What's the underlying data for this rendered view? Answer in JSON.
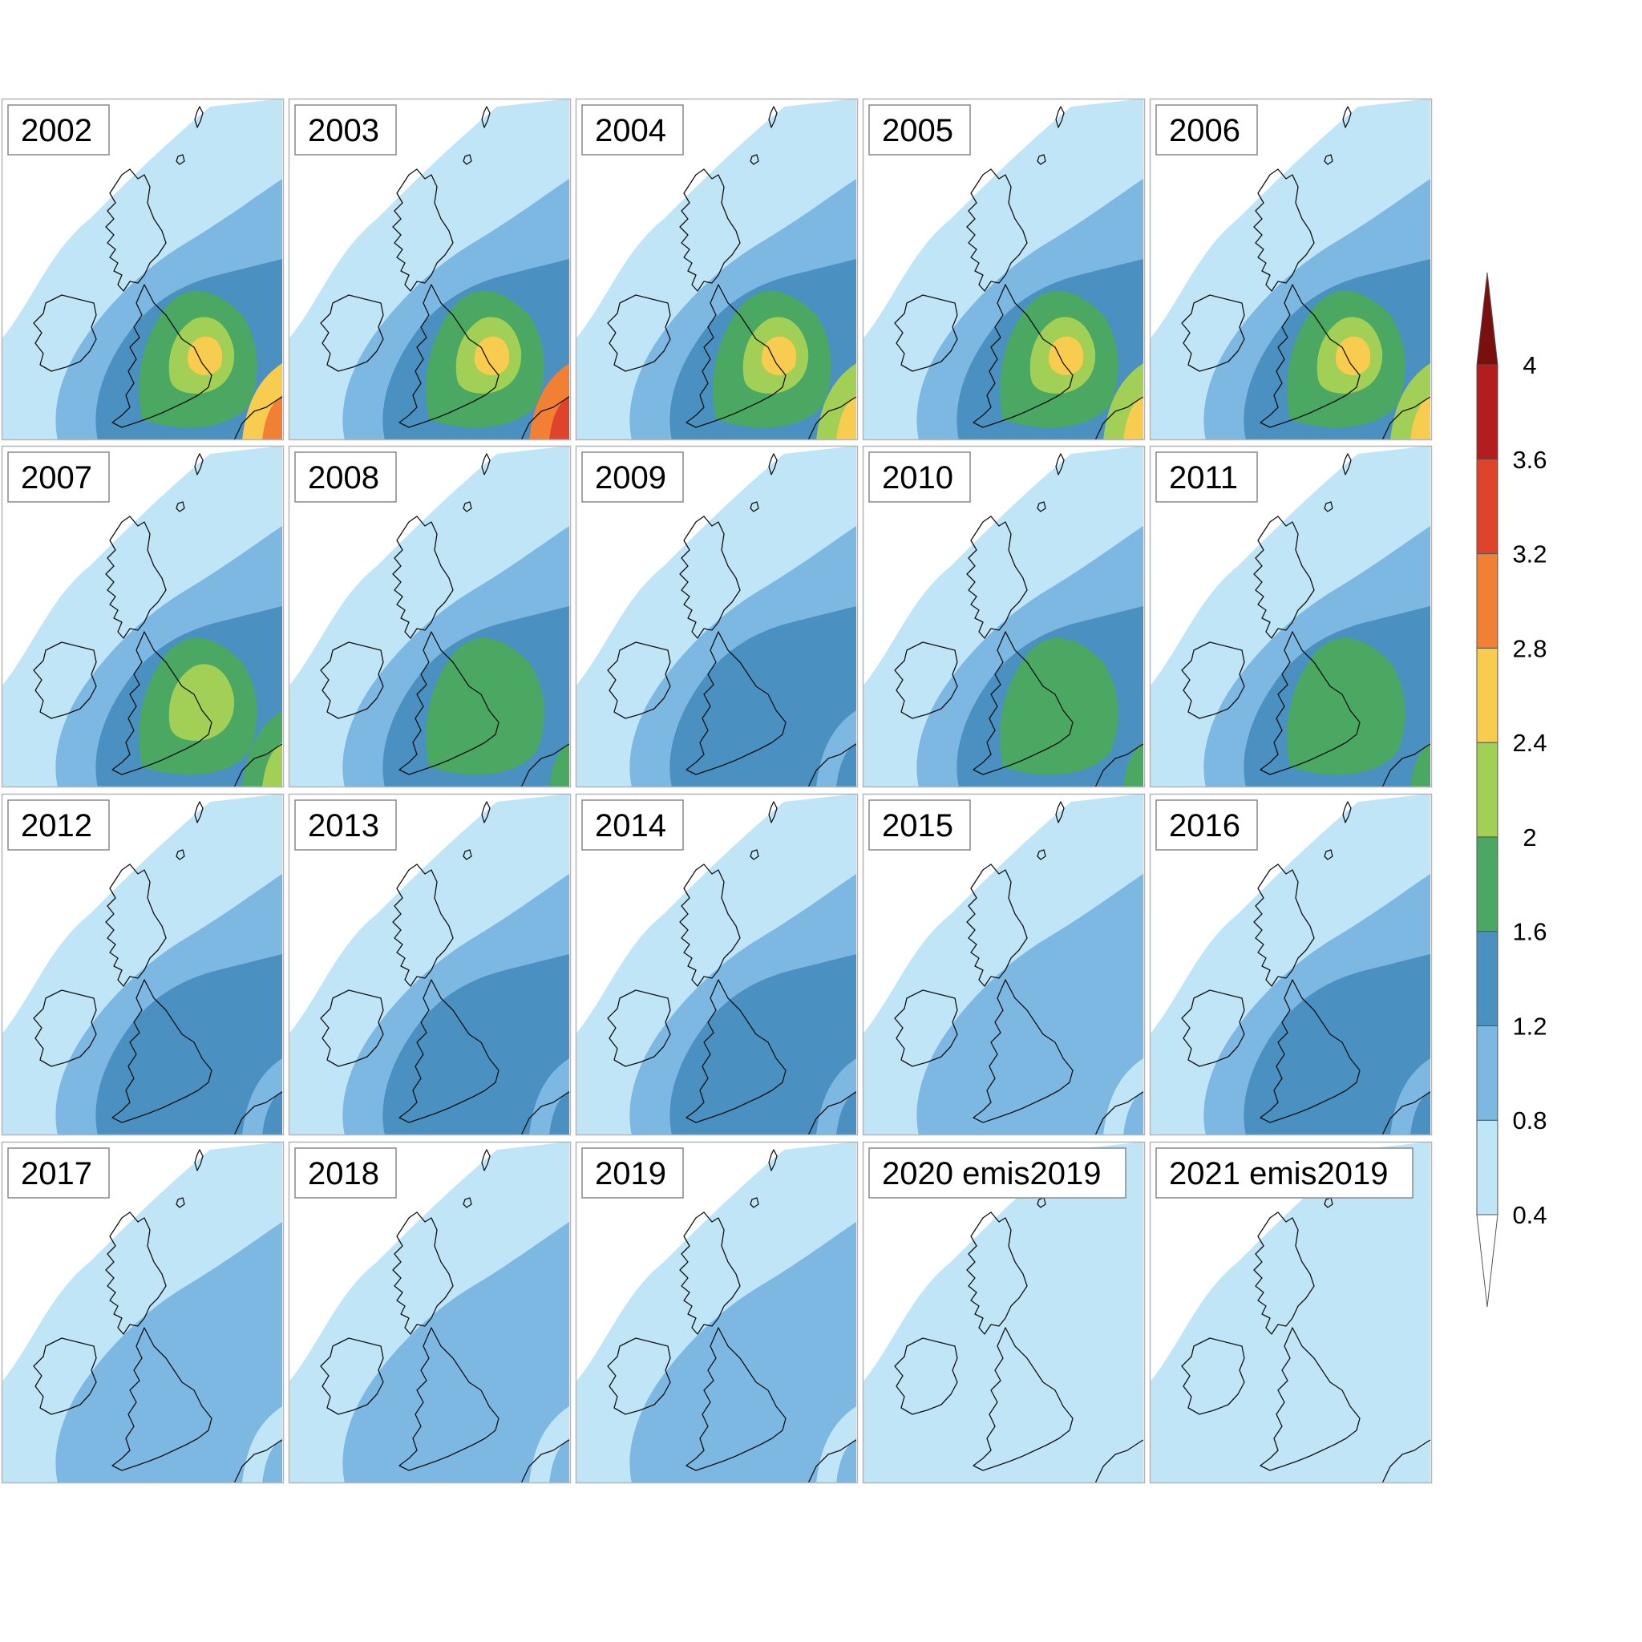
{
  "panels": [
    {
      "label": "2002",
      "level": 7
    },
    {
      "label": "2003",
      "level": 8
    },
    {
      "label": "2004",
      "level": 6
    },
    {
      "label": "2005",
      "level": 6
    },
    {
      "label": "2006",
      "level": 6
    },
    {
      "label": "2007",
      "level": 5
    },
    {
      "label": "2008",
      "level": 4
    },
    {
      "label": "2009",
      "level": 3
    },
    {
      "label": "2010",
      "level": 4
    },
    {
      "label": "2011",
      "level": 4
    },
    {
      "label": "2012",
      "level": 3
    },
    {
      "label": "2013",
      "level": 3
    },
    {
      "label": "2014",
      "level": 3
    },
    {
      "label": "2015",
      "level": 2
    },
    {
      "label": "2016",
      "level": 3
    },
    {
      "label": "2017",
      "level": 2
    },
    {
      "label": "2018",
      "level": 2
    },
    {
      "label": "2019",
      "level": 2
    },
    {
      "label": "2020 emis2019",
      "level": 1
    },
    {
      "label": "2021 emis2019",
      "level": 1
    }
  ],
  "colorbar": {
    "levels": [
      "0.4",
      "0.8",
      "1.2",
      "1.6",
      "2",
      "2.4",
      "2.8",
      "3.2",
      "3.6",
      "4"
    ],
    "colors": [
      "#ffffff",
      "#bfe5f7",
      "#7db8e3",
      "#4a90c0",
      "#4aa863",
      "#a2cf56",
      "#f8cc4e",
      "#f28034",
      "#df432c",
      "#b31d1d",
      "#7a0f0f"
    ]
  }
}
